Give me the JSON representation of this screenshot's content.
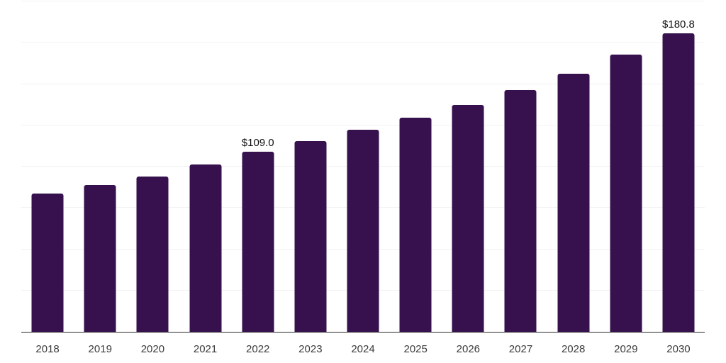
{
  "chart_data": {
    "type": "bar",
    "title": "",
    "xlabel": "",
    "ylabel": "",
    "categories": [
      "2018",
      "2019",
      "2020",
      "2021",
      "2022",
      "2023",
      "2024",
      "2025",
      "2026",
      "2027",
      "2028",
      "2029",
      "2030"
    ],
    "values": [
      83.7,
      88.8,
      93.8,
      101.5,
      109.0,
      115.6,
      122.4,
      129.8,
      137.5,
      146.4,
      156.2,
      167.7,
      180.8
    ],
    "data_labels": [
      {
        "category": "2022",
        "text": "$109.0"
      },
      {
        "category": "2030",
        "text": "$180.8"
      }
    ],
    "ylim": [
      0,
      200
    ],
    "gridline_step": 25,
    "grid": "horizontal-only",
    "legend": "none",
    "y_axis_tick_labels": "none",
    "colors": {
      "bar": "#36114d",
      "gridline": "#f2f2f2",
      "axis": "#2b2b2b",
      "tick_label": "#3a3a3a",
      "value_label": "#111111",
      "background": "#ffffff"
    }
  }
}
